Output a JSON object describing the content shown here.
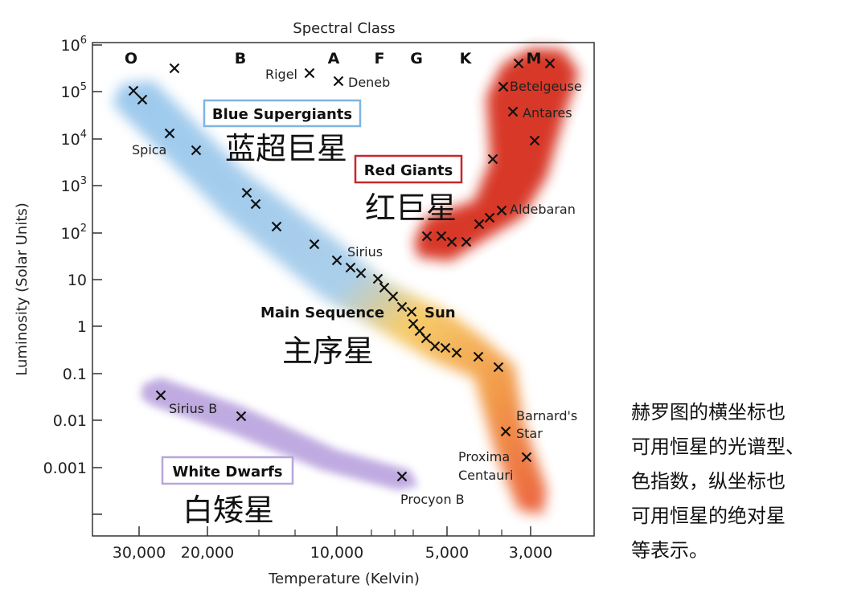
{
  "diagram": {
    "top_title": "Spectral Class",
    "x_title": "Temperature (Kelvin)",
    "y_title": "Luminosity (Solar Units)",
    "spectral_classes": [
      "O",
      "B",
      "A",
      "F",
      "G",
      "K",
      "M"
    ],
    "y_ticks": [
      {
        "base": "10",
        "exp": "6"
      },
      {
        "base": "10",
        "exp": "5"
      },
      {
        "base": "10",
        "exp": "4"
      },
      {
        "base": "10",
        "exp": "3"
      },
      {
        "base": "10",
        "exp": "2"
      },
      {
        "base": "10",
        "exp": ""
      },
      {
        "base": "1",
        "exp": ""
      },
      {
        "base": "0.1",
        "exp": ""
      },
      {
        "base": "0.01",
        "exp": ""
      },
      {
        "base": "0.001",
        "exp": ""
      }
    ],
    "x_ticks": [
      "30,000",
      "20,000",
      "10,000",
      "5,000",
      "3,000"
    ],
    "regions": {
      "blue_supergiants": {
        "label": "Blue Supergiants",
        "label_cn": "蓝超巨星",
        "color": "#6fa8dc"
      },
      "red_giants": {
        "label": "Red Giants",
        "label_cn": "红巨星",
        "color": "#cc2a1c"
      },
      "main_sequence": {
        "label": "Main Sequence",
        "label_cn": "主序星",
        "color": "#f0b23c"
      },
      "white_dwarfs": {
        "label": "White Dwarfs",
        "label_cn": "白矮星",
        "color": "#a78fd0"
      }
    },
    "star_names": {
      "rigel": "Rigel",
      "deneb": "Deneb",
      "spica": "Spica",
      "betelgeuse": "Betelgeuse",
      "antares": "Antares",
      "aldebaran": "Aldebaran",
      "sirius": "Sirius",
      "sun": "Sun",
      "sirius_b": "Sirius B",
      "procyon_b": "Procyon B",
      "barnards_star_line1": "Barnard's",
      "barnards_star_line2": "Star",
      "proxima_line1": "Proxima",
      "proxima_line2": "Centauri"
    }
  },
  "side_note": {
    "lines": [
      "赫罗图的横坐标也",
      "可用恒星的光谱型、",
      "色指数，纵坐标也",
      "可用恒星的绝对星",
      "等表示。"
    ]
  }
}
